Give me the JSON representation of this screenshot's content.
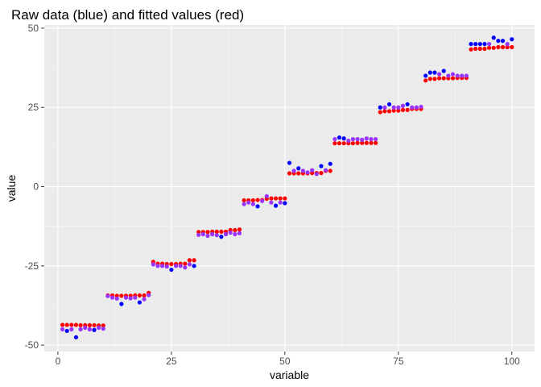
{
  "chart_data": {
    "type": "scatter",
    "title": "Raw data (blue) and fitted values (red)",
    "xlabel": "variable",
    "ylabel": "value",
    "xlim": [
      -3,
      105
    ],
    "ylim": [
      -52,
      51
    ],
    "x_ticks": [
      0,
      25,
      50,
      75,
      100
    ],
    "y_ticks": [
      -50,
      -25,
      0,
      25,
      50
    ],
    "grid": true,
    "colors": {
      "panel": "#ebebeb",
      "grid_major": "#ffffff",
      "grid_minor": "#f5f5f5",
      "tick_text": "#4d4d4d",
      "raw": "#0000ff",
      "fitted": "#ff0000",
      "overlap": "#9933ff"
    },
    "series": [
      {
        "name": "raw",
        "color": "#0000ff",
        "x": [
          1,
          2,
          3,
          4,
          5,
          6,
          7,
          8,
          9,
          10,
          11,
          12,
          13,
          14,
          15,
          16,
          17,
          18,
          19,
          20,
          21,
          22,
          23,
          24,
          25,
          26,
          27,
          28,
          29,
          30,
          31,
          32,
          33,
          34,
          35,
          36,
          37,
          38,
          39,
          40,
          41,
          42,
          43,
          44,
          45,
          46,
          47,
          48,
          49,
          50,
          51,
          52,
          53,
          54,
          55,
          56,
          57,
          58,
          59,
          60,
          61,
          62,
          63,
          64,
          65,
          66,
          67,
          68,
          69,
          70,
          71,
          72,
          73,
          74,
          75,
          76,
          77,
          78,
          79,
          80,
          81,
          82,
          83,
          84,
          85,
          86,
          87,
          88,
          89,
          90,
          91,
          92,
          93,
          94,
          95,
          96,
          97,
          98,
          99,
          100
        ],
        "y": [
          -45,
          -45.5,
          -45,
          -47.5,
          -45,
          -44.5,
          -45,
          -45.2,
          -44.5,
          -44.8,
          -34.5,
          -35,
          -35.3,
          -37,
          -35,
          -35.2,
          -35,
          -36.5,
          -35.5,
          -34.2,
          -24.5,
          -25,
          -25,
          -25.2,
          -26.2,
          -25,
          -25,
          -25.5,
          -24.5,
          -25,
          -15.2,
          -15,
          -15.5,
          -15,
          -15.3,
          -15.8,
          -15,
          -14.5,
          -15,
          -14.7,
          -5.5,
          -5,
          -5.5,
          -6.2,
          -4.5,
          -3,
          -5,
          -6,
          -5,
          -5.2,
          7.5,
          5,
          5.8,
          5,
          4.5,
          5.2,
          4,
          6.5,
          5.2,
          7.2,
          15,
          15.5,
          15.2,
          14.5,
          15,
          15,
          14.8,
          15.2,
          15,
          15,
          25,
          25,
          26,
          25,
          25,
          25.5,
          26,
          25,
          25,
          25.2,
          35,
          36,
          36,
          35.5,
          36.5,
          35,
          35.5,
          35,
          35,
          35,
          45,
          45,
          45,
          45,
          45,
          47,
          46,
          46,
          45,
          46.5
        ]
      },
      {
        "name": "fitted",
        "color": "#ff0000",
        "x": [
          1,
          2,
          3,
          4,
          5,
          6,
          7,
          8,
          9,
          10,
          11,
          12,
          13,
          14,
          15,
          16,
          17,
          18,
          19,
          20,
          21,
          22,
          23,
          24,
          25,
          26,
          27,
          28,
          29,
          30,
          31,
          32,
          33,
          34,
          35,
          36,
          37,
          38,
          39,
          40,
          41,
          42,
          43,
          44,
          45,
          46,
          47,
          48,
          49,
          50,
          51,
          52,
          53,
          54,
          55,
          56,
          57,
          58,
          59,
          60,
          61,
          62,
          63,
          64,
          65,
          66,
          67,
          68,
          69,
          70,
          71,
          72,
          73,
          74,
          75,
          76,
          77,
          78,
          79,
          80,
          81,
          82,
          83,
          84,
          85,
          86,
          87,
          88,
          89,
          90,
          91,
          92,
          93,
          94,
          95,
          96,
          97,
          98,
          99,
          100
        ],
        "y": [
          -43.6,
          -43.6,
          -43.6,
          -43.6,
          -43.7,
          -43.7,
          -43.7,
          -43.7,
          -43.8,
          -43.8,
          -34.3,
          -34.3,
          -34.4,
          -34.4,
          -34.4,
          -34.4,
          -34.3,
          -34.3,
          -34.3,
          -33.5,
          -23.7,
          -24.3,
          -24.3,
          -24.4,
          -24.4,
          -24.4,
          -24.3,
          -24.3,
          -23.2,
          -23.2,
          -14.3,
          -14.3,
          -14.3,
          -14.2,
          -14.2,
          -14.2,
          -14.2,
          -13.7,
          -13.7,
          -13.5,
          -4.3,
          -4.3,
          -4.3,
          -4.2,
          -4.2,
          -3.8,
          -3.7,
          -3.7,
          -3.7,
          -3.7,
          4.2,
          4.2,
          4.2,
          4.2,
          4.2,
          4.3,
          4.3,
          4.3,
          5,
          5,
          13.7,
          13.7,
          13.7,
          13.7,
          13.7,
          13.8,
          13.8,
          13.8,
          13.8,
          13.8,
          23.5,
          23.8,
          23.8,
          24,
          24,
          24.2,
          24.2,
          24.5,
          24.5,
          24.5,
          33.5,
          34,
          34,
          34.2,
          34.2,
          34.2,
          34.2,
          34.3,
          34.3,
          34.3,
          43.3,
          43.5,
          43.5,
          43.5,
          43.8,
          43.8,
          44,
          44,
          44,
          44
        ]
      }
    ]
  }
}
